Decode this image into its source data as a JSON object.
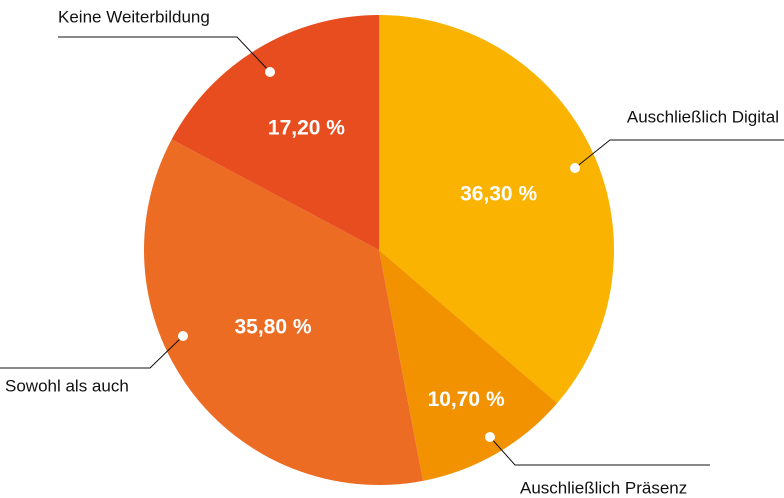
{
  "chart_data": {
    "type": "pie",
    "categories": [
      "Auschließlich Digital",
      "Auschließlich Präsenz",
      "Sowohl als auch",
      "Keine Weiterbildung"
    ],
    "values": [
      36.3,
      10.7,
      35.8,
      17.2
    ],
    "value_labels": [
      "36,30 %",
      "10,70 %",
      "35,80 %",
      "17,20 %"
    ],
    "colors": [
      "#f9b300",
      "#f29200",
      "#ec6c23",
      "#e84d1f"
    ]
  }
}
